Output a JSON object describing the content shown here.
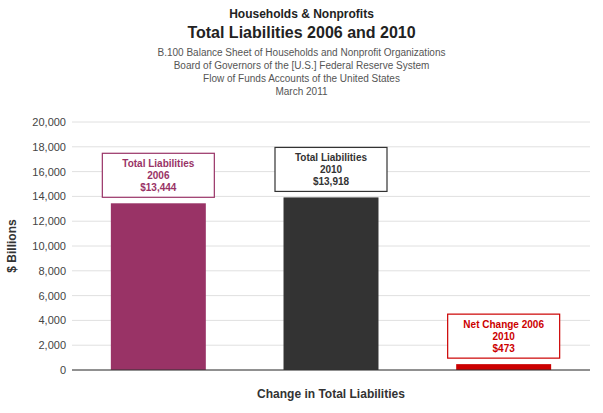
{
  "chart_data": {
    "type": "bar",
    "title": [
      "Households & Nonprofits",
      "Total Liabilities 2006 and 2010"
    ],
    "subtitle": [
      "B.100 Balance Sheet of Households and Nonprofit Organizations",
      "Board of Governors of the [U.S.] Federal Reserve System",
      "Flow of Funds Accounts of the United States",
      "March 2011"
    ],
    "x_label": "Change in Total Liabilities",
    "y_label": "$ Billions",
    "categories": [
      null,
      null,
      null
    ],
    "values": [
      13444,
      13918,
      473
    ],
    "colors": [
      "#993366",
      "#333333",
      "#cc0000"
    ],
    "data_labels": true,
    "value_labels": [
      "Total Liabilities\n2006\n$13,444",
      "Total Liabilities\n2010\n$13,918",
      "Net Change 2006\n2010\n$473"
    ],
    "ylim": [
      0,
      20000
    ],
    "yticks": [
      0,
      {
        "value": 2000,
        "label": "2,000"
      },
      {
        "value": 4000,
        "label": "4,000"
      },
      {
        "value": 6000,
        "label": "6,000"
      },
      {
        "value": 8000,
        "label": "8,000"
      },
      {
        "value": 10000,
        "label": "10,000"
      },
      {
        "value": 12000,
        "label": "12,000"
      },
      {
        "value": 14000,
        "label": "14,000"
      },
      {
        "value": 16000,
        "label": "16,000"
      },
      {
        "value": 18000,
        "label": "18,000"
      },
      {
        "value": 20000,
        "label": "20,000"
      }
    ],
    "grid": true,
    "tick_labels": "y"
  }
}
